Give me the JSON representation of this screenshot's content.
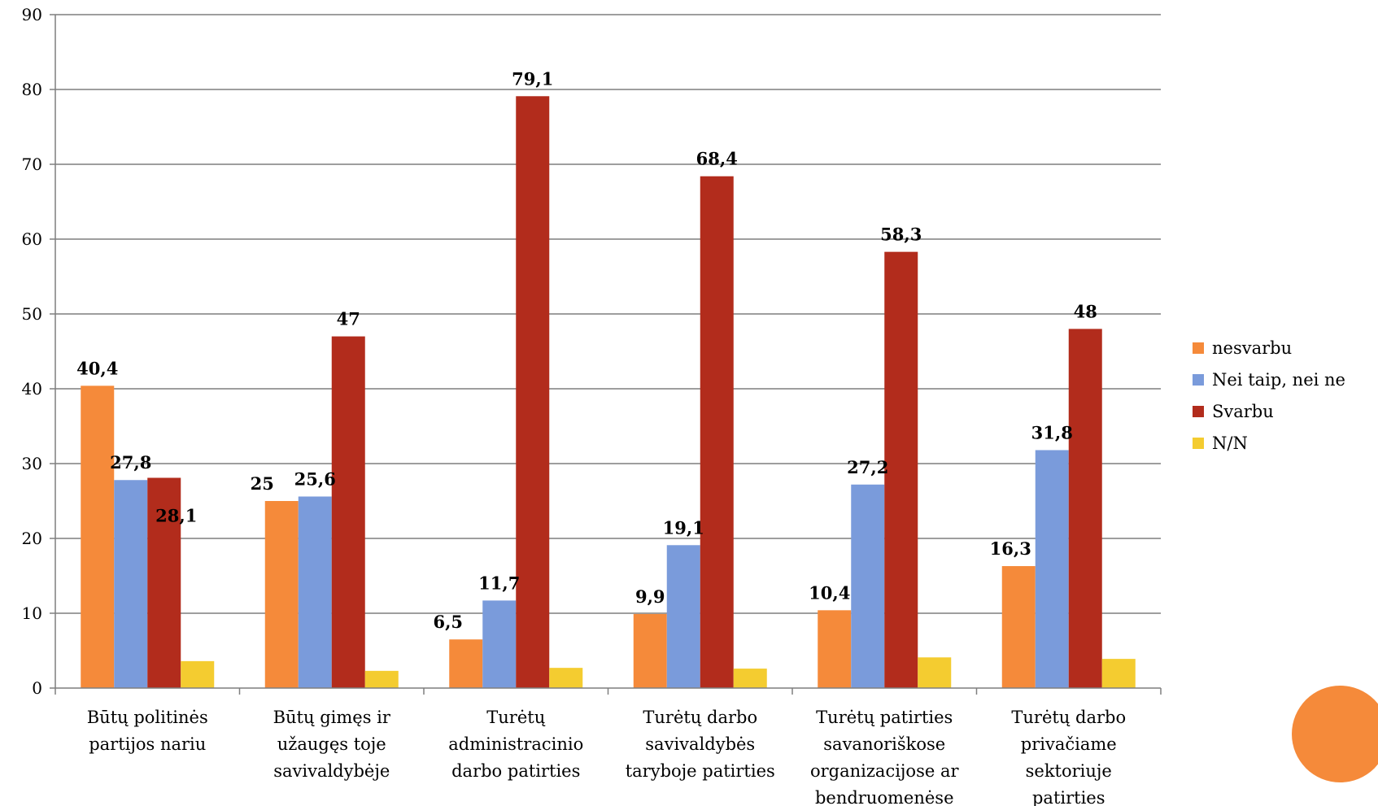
{
  "chart_data": {
    "type": "bar",
    "title": "",
    "xlabel": "",
    "ylabel": "",
    "ylim": [
      0,
      90
    ],
    "yticks": [
      0,
      10,
      20,
      30,
      40,
      50,
      60,
      70,
      80,
      90
    ],
    "grid": true,
    "legend_position": "right",
    "categories": [
      [
        "Būtų politinės",
        "partijos nariu"
      ],
      [
        "Būtų gimęs ir",
        "užaugęs toje",
        "savivaldybėje"
      ],
      [
        "Turėtų",
        "administracinio",
        "darbo patirties"
      ],
      [
        "Turėtų darbo",
        "savivaldybės",
        "taryboje patirties"
      ],
      [
        "Turėtų patirties",
        "savanoriškose",
        "organizacijose ar",
        "bendruomenėse"
      ],
      [
        "Turėtų darbo",
        "privačiame",
        "sektoriuje",
        "patirties"
      ]
    ],
    "series": [
      {
        "name": "nesvarbu",
        "color": "#f58a3a",
        "values": [
          40.4,
          25,
          6.5,
          9.9,
          10.4,
          16.3
        ],
        "labels": [
          "40,4",
          "25",
          "6,5",
          "9,9",
          "10,4",
          "16,3"
        ]
      },
      {
        "name": "Nei taip, nei ne",
        "color": "#7a9bdb",
        "values": [
          27.8,
          25.6,
          11.7,
          19.1,
          27.2,
          31.8
        ],
        "labels": [
          "27,8",
          "25,6",
          "11,7",
          "19,1",
          "27,2",
          "31,8"
        ]
      },
      {
        "name": "Svarbu",
        "color": "#b22c1c",
        "values": [
          28.1,
          47,
          79.1,
          68.4,
          58.3,
          48
        ],
        "labels": [
          "28,1",
          "47",
          "79,1",
          "68,4",
          "58,3",
          "48"
        ]
      },
      {
        "name": "N/N",
        "color": "#f4cc30",
        "values": [
          3.6,
          2.3,
          2.7,
          2.6,
          4.1,
          3.9
        ],
        "labels": [
          "",
          "",
          "",
          "",
          "",
          ""
        ]
      }
    ]
  },
  "decoration": {
    "circle_color": "#f58a3a"
  }
}
